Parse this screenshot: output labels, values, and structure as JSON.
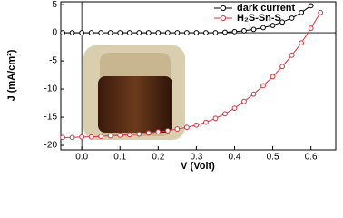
{
  "chart_data": {
    "type": "line",
    "x_label": "V (Volt)",
    "y_label": "J (mA/cm²)",
    "xlim": [
      -0.055,
      0.665
    ],
    "ylim": [
      -20.8,
      5.5
    ],
    "xticks": [
      {
        "value": 0,
        "label": "0.0"
      },
      0.1,
      0.2,
      0.3,
      0.4,
      0.5,
      0.6
    ],
    "yticks": [
      5,
      0,
      -5,
      -10,
      -15,
      -20
    ],
    "legend": "top-right",
    "series": [
      {
        "name": "dark current",
        "color": "#000000",
        "x": [
          -0.05,
          -0.025,
          0,
          0.025,
          0.05,
          0.075,
          0.1,
          0.125,
          0.15,
          0.175,
          0.2,
          0.225,
          0.25,
          0.275,
          0.3,
          0.325,
          0.35,
          0.375,
          0.4,
          0.425,
          0.45,
          0.475,
          0.5,
          0.525,
          0.55,
          0.575,
          0.6
        ],
        "values": [
          0,
          0,
          0,
          0,
          0,
          0,
          0,
          0,
          0,
          0,
          0,
          0,
          0,
          0,
          0,
          0,
          0,
          0.1,
          0.2,
          0.35,
          0.6,
          0.9,
          1.3,
          1.9,
          2.6,
          3.6,
          4.8
        ]
      },
      {
        "name": "H₂S-Sn-S",
        "color": "#e0303f",
        "x": [
          -0.05,
          -0.025,
          0,
          0.025,
          0.05,
          0.075,
          0.1,
          0.125,
          0.15,
          0.175,
          0.2,
          0.225,
          0.25,
          0.275,
          0.3,
          0.325,
          0.35,
          0.375,
          0.4,
          0.425,
          0.45,
          0.475,
          0.5,
          0.525,
          0.55,
          0.575,
          0.6,
          0.625
        ],
        "values": [
          -18.6,
          -18.6,
          -18.5,
          -18.5,
          -18.4,
          -18.3,
          -18.2,
          -18.1,
          -18.0,
          -17.8,
          -17.6,
          -17.4,
          -17.1,
          -16.8,
          -16.4,
          -15.9,
          -15.2,
          -14.4,
          -13.4,
          -12.2,
          -10.9,
          -9.4,
          -7.8,
          -6.0,
          -4.0,
          -1.8,
          0.8,
          3.6
        ]
      }
    ]
  }
}
